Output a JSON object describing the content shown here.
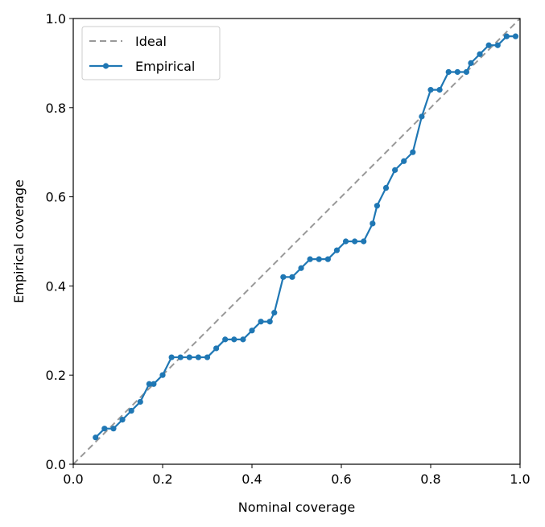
{
  "chart_data": {
    "type": "line",
    "xlabel": "Nominal coverage",
    "ylabel": "Empirical coverage",
    "xlim": [
      0.0,
      1.0
    ],
    "ylim": [
      0.0,
      1.0
    ],
    "xticks": [
      "0.0",
      "0.2",
      "0.4",
      "0.6",
      "0.8",
      "1.0"
    ],
    "yticks": [
      "0.0",
      "0.2",
      "0.4",
      "0.6",
      "0.8",
      "1.0"
    ],
    "grid": false,
    "legend_position": "top-left",
    "series": [
      {
        "name": "Ideal",
        "style": "dashed",
        "color": "#999999",
        "x": [
          0.0,
          1.0
        ],
        "y": [
          0.0,
          1.0
        ]
      },
      {
        "name": "Empirical",
        "style": "line-with-markers",
        "color": "#1f77b4",
        "x": [
          0.05,
          0.07,
          0.09,
          0.11,
          0.13,
          0.15,
          0.17,
          0.18,
          0.2,
          0.22,
          0.24,
          0.26,
          0.28,
          0.3,
          0.32,
          0.34,
          0.36,
          0.38,
          0.4,
          0.42,
          0.44,
          0.45,
          0.47,
          0.49,
          0.51,
          0.53,
          0.55,
          0.57,
          0.59,
          0.61,
          0.63,
          0.65,
          0.67,
          0.68,
          0.7,
          0.72,
          0.74,
          0.76,
          0.78,
          0.8,
          0.82,
          0.84,
          0.86,
          0.88,
          0.89,
          0.91,
          0.93,
          0.95,
          0.97,
          0.99
        ],
        "y": [
          0.06,
          0.08,
          0.08,
          0.1,
          0.12,
          0.14,
          0.18,
          0.18,
          0.2,
          0.24,
          0.24,
          0.24,
          0.24,
          0.24,
          0.26,
          0.28,
          0.28,
          0.28,
          0.3,
          0.32,
          0.32,
          0.34,
          0.42,
          0.42,
          0.44,
          0.46,
          0.46,
          0.46,
          0.48,
          0.5,
          0.5,
          0.5,
          0.54,
          0.58,
          0.62,
          0.66,
          0.68,
          0.7,
          0.78,
          0.84,
          0.84,
          0.88,
          0.88,
          0.88,
          0.9,
          0.92,
          0.94,
          0.94,
          0.96,
          0.96
        ]
      }
    ]
  }
}
